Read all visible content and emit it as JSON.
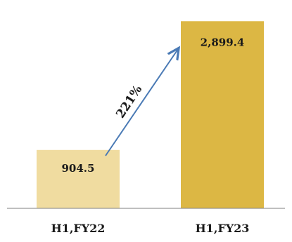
{
  "chart_data": {
    "type": "bar",
    "categories": [
      "H1,FY22",
      "H1,FY23"
    ],
    "values": [
      904.5,
      2899.4
    ],
    "value_labels": [
      "904.5",
      "2,899.4"
    ],
    "growth_annotation": "221%",
    "colors": {
      "bar_1": "#f0dca0",
      "bar_2": "#dcb744",
      "arrow": "#4a7ab5",
      "axis": "#7f7f7f"
    },
    "ylim": [
      0,
      3000
    ],
    "grid": false,
    "title": "",
    "xlabel": "",
    "ylabel": ""
  }
}
